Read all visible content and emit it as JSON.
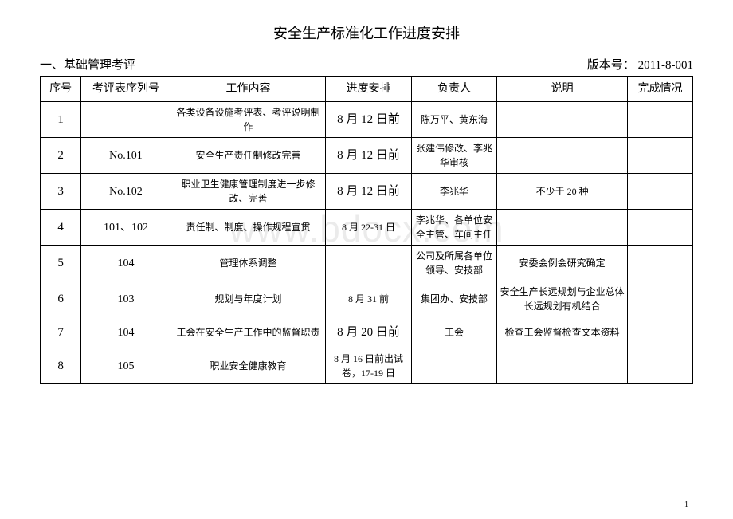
{
  "title": "安全生产标准化工作进度安排",
  "section_label": "一、基础管理考评",
  "version_label": "版本号：",
  "version_value": "2011-8-001",
  "watermark": "www.bdocx.com",
  "page_number": "1",
  "columns": {
    "seq": "序号",
    "tblno": "考评表序列号",
    "work": "工作内容",
    "sched": "进度安排",
    "owner": "负责人",
    "note": "说明",
    "status": "完成情况"
  },
  "rows": [
    {
      "seq": "1",
      "tblno": "",
      "work": "各类设备设施考评表、考评说明制作",
      "sched": "8 月 12 日前",
      "sched_large": true,
      "owner": "陈万平、黄东海",
      "note": "",
      "status": ""
    },
    {
      "seq": "2",
      "tblno": "No.101",
      "work": "安全生产责任制修改完善",
      "sched": "8 月 12 日前",
      "sched_large": true,
      "owner": "张建伟修改、李兆华审核",
      "note": "",
      "status": ""
    },
    {
      "seq": "3",
      "tblno": "No.102",
      "work": "职业卫生健康管理制度进一步修改、完善",
      "sched": "8 月 12 日前",
      "sched_large": true,
      "owner": "李兆华",
      "note": "不少于 20 种",
      "status": ""
    },
    {
      "seq": "4",
      "tblno": "101、102",
      "work": "责任制、制度、操作规程宣贯",
      "sched": "8 月 22-31 日",
      "sched_large": false,
      "owner": "李兆华、各单位安全主管、车间主任",
      "note": "",
      "status": ""
    },
    {
      "seq": "5",
      "tblno": "104",
      "work": "管理体系调整",
      "sched": "",
      "sched_large": false,
      "owner": "公司及所属各单位领导、安技部",
      "note": "安委会例会研究确定",
      "status": ""
    },
    {
      "seq": "6",
      "tblno": "103",
      "work": "规划与年度计划",
      "sched": "8 月 31 前",
      "sched_large": false,
      "owner": "集团办、安技部",
      "note": "安全生产长远规划与企业总体长远规划有机结合",
      "status": ""
    },
    {
      "seq": "7",
      "tblno": "104",
      "work": "工会在安全生产工作中的监督职责",
      "sched": "8 月 20 日前",
      "sched_large": true,
      "owner": "工会",
      "note": "检查工会监督检查文本资料",
      "status": ""
    },
    {
      "seq": "8",
      "tblno": "105",
      "work": "职业安全健康教育",
      "sched": "8 月 16 日前出试卷，17-19 日",
      "sched_large": false,
      "owner": "",
      "note": "",
      "status": ""
    }
  ]
}
